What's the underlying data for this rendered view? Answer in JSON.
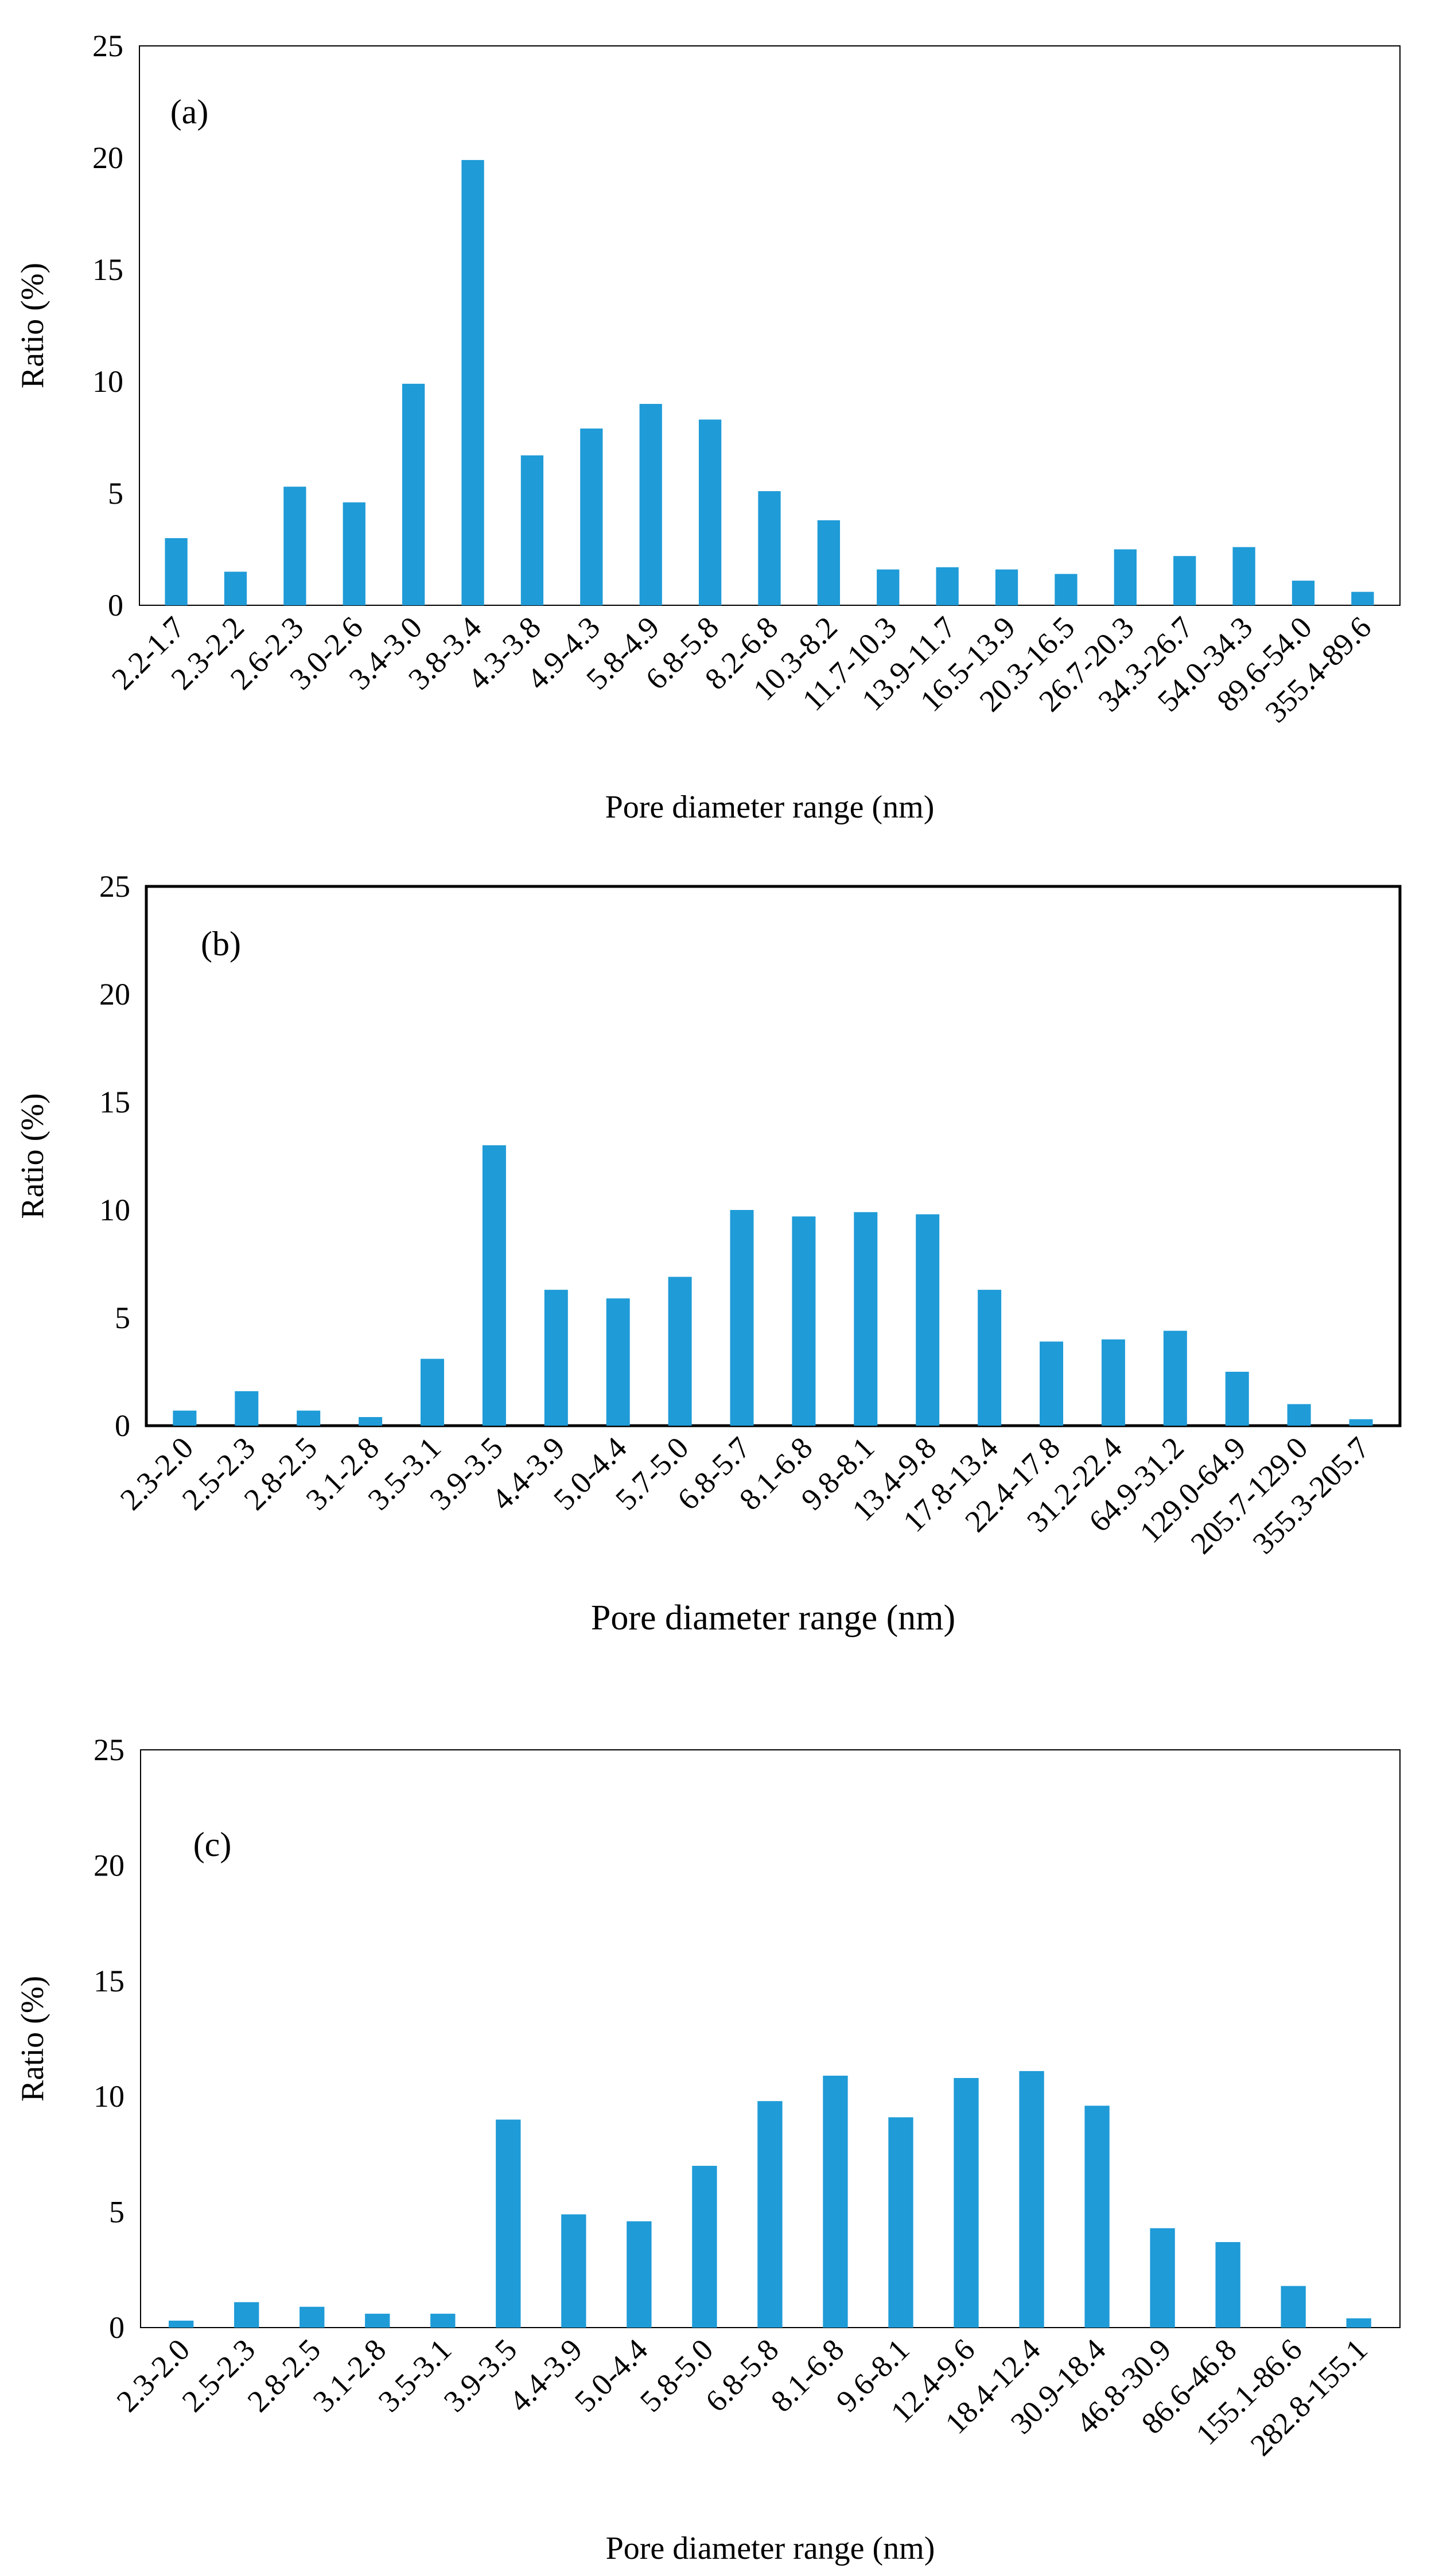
{
  "chart_data": [
    {
      "type": "bar",
      "panel_label": "(a)",
      "xlabel": "Pore  diameter range (nm)",
      "ylabel": "Ratio (%)",
      "ylim": [
        0,
        25
      ],
      "yticks": [
        "0",
        "5",
        "10",
        "15",
        "20",
        "25"
      ],
      "bar_color": "#1f9bd7",
      "categories": [
        "2.2-1.7",
        "2.3-2.2",
        "2.6-2.3",
        "3.0-2.6",
        "3.4-3.0",
        "3.8-3.4",
        "4.3-3.8",
        "4.9-4.3",
        "5.8-4.9",
        "6.8-5.8",
        "8.2-6.8",
        "10.3-8.2",
        "11.7-10.3",
        "13.9-11.7",
        "16.5-13.9",
        "20.3-16.5",
        "26.7-20.3",
        "34.3-26.7",
        "54.0-34.3",
        "89.6-54.0",
        "355.4-89.6"
      ],
      "values": [
        3.0,
        1.5,
        5.3,
        4.6,
        9.9,
        19.9,
        6.7,
        7.9,
        9.0,
        8.3,
        5.1,
        3.8,
        1.6,
        1.7,
        1.6,
        1.4,
        2.5,
        2.2,
        2.6,
        1.1,
        0.6
      ]
    },
    {
      "type": "bar",
      "panel_label": "(b)",
      "xlabel": "Pore diameter range  (nm)",
      "ylabel": "Ratio (%)",
      "ylim": [
        0,
        25
      ],
      "yticks": [
        "0",
        "5",
        "10",
        "15",
        "20",
        "25"
      ],
      "bar_color": "#1f9bd7",
      "categories": [
        "2.3-2.0",
        "2.5-2.3",
        "2.8-2.5",
        "3.1-2.8",
        "3.5-3.1",
        "3.9-3.5",
        "4.4-3.9",
        "5.0-4.4",
        "5.7-5.0",
        "6.8-5.7",
        "8.1-6.8",
        "9.8-8.1",
        "13.4-9.8",
        "17.8-13.4",
        "22.4-17.8",
        "31.2-22.4",
        "64.9-31.2",
        "129.0-64.9",
        "205.7-129.0",
        "355.3-205.7"
      ],
      "values": [
        0.7,
        1.6,
        0.7,
        0.4,
        3.1,
        13.0,
        6.3,
        5.9,
        6.9,
        10.0,
        9.7,
        9.9,
        9.8,
        6.3,
        3.9,
        4.0,
        4.4,
        2.5,
        1.0,
        0.3
      ]
    },
    {
      "type": "bar",
      "panel_label": "(c)",
      "xlabel": "Pore diameter range (nm)",
      "ylabel": "Ratio (%)",
      "ylim": [
        0,
        25
      ],
      "yticks": [
        "0",
        "5",
        "10",
        "15",
        "20",
        "25"
      ],
      "bar_color": "#1f9bd7",
      "categories": [
        "2.3-2.0",
        "2.5-2.3",
        "2.8-2.5",
        "3.1-2.8",
        "3.5-3.1",
        "3.9-3.5",
        "4.4-3.9",
        "5.0-4.4",
        "5.8-5.0",
        "6.8-5.8",
        "8.1-6.8",
        "9.6-8.1",
        "12.4-9.6",
        "18.4-12.4",
        "30.9-18.4",
        "46.8-30.9",
        "86.6-46.8",
        "155.1-86.6",
        "282.8-155.1"
      ],
      "values": [
        0.3,
        1.1,
        0.9,
        0.6,
        0.6,
        9.0,
        4.9,
        4.6,
        7.0,
        9.8,
        10.9,
        9.1,
        10.8,
        11.1,
        9.6,
        4.3,
        3.7,
        1.8,
        0.4
      ]
    }
  ]
}
